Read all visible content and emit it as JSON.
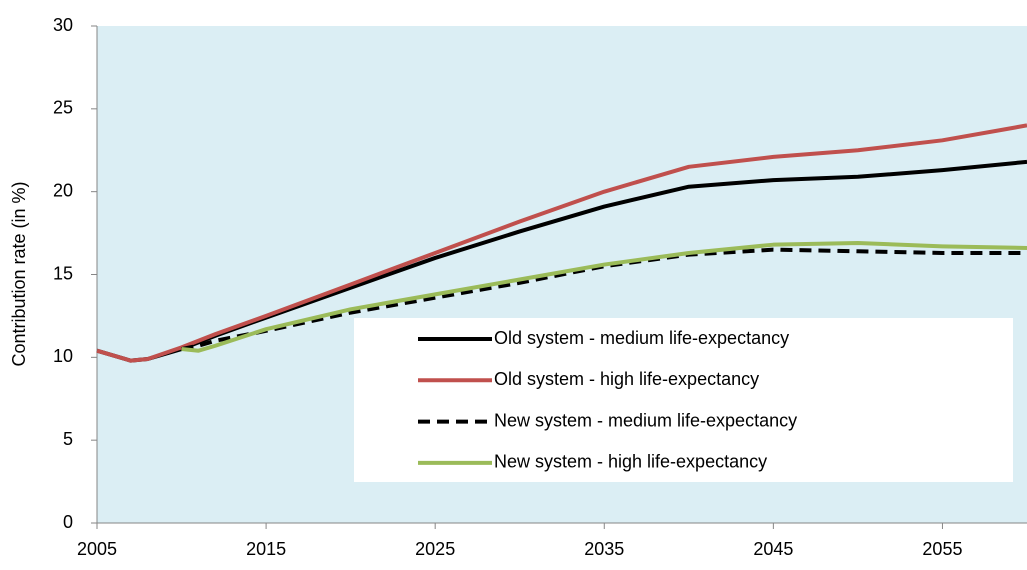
{
  "chart_data": {
    "type": "line",
    "y_label": "Contribution rate (in %)",
    "x": [
      2005,
      2007,
      2008,
      2010,
      2011,
      2012,
      2015,
      2020,
      2025,
      2030,
      2035,
      2040,
      2045,
      2050,
      2055,
      2060
    ],
    "series": [
      {
        "name": "Old system - medium life-expectancy",
        "color": "#000000",
        "dash": false,
        "values": [
          10.4,
          9.8,
          9.9,
          10.5,
          10.9,
          11.3,
          12.4,
          14.2,
          16.0,
          17.6,
          19.1,
          20.3,
          20.7,
          20.9,
          21.3,
          21.8
        ]
      },
      {
        "name": "Old system - high life-expectancy",
        "color": "#c0504d",
        "dash": false,
        "values": [
          10.4,
          9.8,
          9.9,
          10.6,
          11.0,
          11.4,
          12.5,
          14.4,
          16.3,
          18.2,
          20.0,
          21.5,
          22.1,
          22.5,
          23.1,
          24.0
        ]
      },
      {
        "name": "New system - medium life-expectancy",
        "color": "#000000",
        "dash": true,
        "values": [
          null,
          null,
          null,
          10.5,
          10.7,
          11.0,
          11.6,
          12.7,
          13.6,
          14.5,
          15.5,
          16.2,
          16.5,
          16.4,
          16.3,
          16.3
        ]
      },
      {
        "name": "New system - high life-expectancy",
        "color": "#9bbb59",
        "dash": false,
        "values": [
          null,
          null,
          null,
          10.5,
          10.4,
          10.7,
          11.7,
          12.9,
          13.8,
          14.7,
          15.6,
          16.3,
          16.8,
          16.9,
          16.7,
          16.6
        ]
      }
    ],
    "xlim": [
      2005,
      2060
    ],
    "xticks": [
      2005,
      2015,
      2025,
      2035,
      2045,
      2055
    ],
    "ylim": [
      0,
      30
    ],
    "yticks": [
      0,
      5,
      10,
      15,
      20,
      25,
      30
    ],
    "plot_background": "#dbeef4"
  }
}
